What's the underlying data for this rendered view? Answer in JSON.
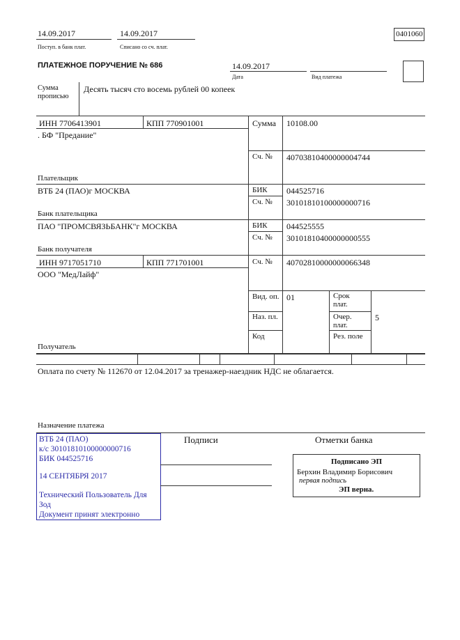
{
  "header": {
    "received_date": "14.09.2017",
    "received_label": "Поступ. в банк плат.",
    "debited_date": "14.09.2017",
    "debited_label": "Списано со сч. плат.",
    "form_code": "0401060"
  },
  "title": "ПЛАТЕЖНОЕ ПОРУЧЕНИЕ № 686",
  "date": "14.09.2017",
  "date_label": "Дата",
  "payment_type_label": "Вид платежа",
  "amount_words_label_1": "Сумма",
  "amount_words_label_2": "прописью",
  "amount_words": "Десять тысяч сто восемь рублей 00 копеек",
  "payer": {
    "inn": "ИНН 7706413901",
    "kpp": "КПП 770901001",
    "name": ". БФ \"Предание\"",
    "label": "Плательщик"
  },
  "labels": {
    "sum": "Сумма",
    "account": "Сч. №",
    "bik": "БИК",
    "vid_op": "Вид. оп.",
    "naz_pl": "Наз. пл.",
    "kod": "Код",
    "srok_1": "Срок",
    "srok_2": "плат.",
    "ocher_1": "Очер.",
    "ocher_2": "плат.",
    "rez": "Рез. поле"
  },
  "amount": "10108.00",
  "payer_account": "40703810400000004744",
  "payer_bank": {
    "name": "ВТБ 24 (ПАО)г МОСКВА",
    "bik": "044525716",
    "account": "30101810100000000716",
    "label": "Банк плательщика"
  },
  "payee_bank": {
    "name": "ПАО \"ПРОМСВЯЗЬБАНК\"г МОСКВА",
    "bik": "044525555",
    "account": "30101810400000000555",
    "label": "Банк получателя"
  },
  "payee": {
    "inn": "ИНН 9717051710",
    "kpp": "КПП 771701001",
    "name": "ООО \"МедЛайф\"",
    "account": "40702810000000066348",
    "label": "Получатель"
  },
  "vid_op": "01",
  "ocher": "5",
  "purpose": "Оплата по счету № 112670 от 12.04.2017 за тренажер-наездник НДС не облагается.",
  "purpose_label": "Назначение платежа",
  "signatures_label": "Подписи",
  "bank_marks_label": "Отметки банка",
  "stamp": {
    "color": "#2a2aa8",
    "lines": [
      "ВТБ 24 (ПАО)",
      "к/с 30101810100000000716",
      "БИК 044525716",
      "14 СЕНТЯБРЯ 2017",
      "Технический Пользователь Для",
      "Зод",
      "Документ принят электронно"
    ]
  },
  "signature_box": {
    "title": "Подписано ЭП",
    "name": "Берхин Владимир Борисович",
    "role": "первая подпись",
    "verdict": "ЭП верна."
  }
}
